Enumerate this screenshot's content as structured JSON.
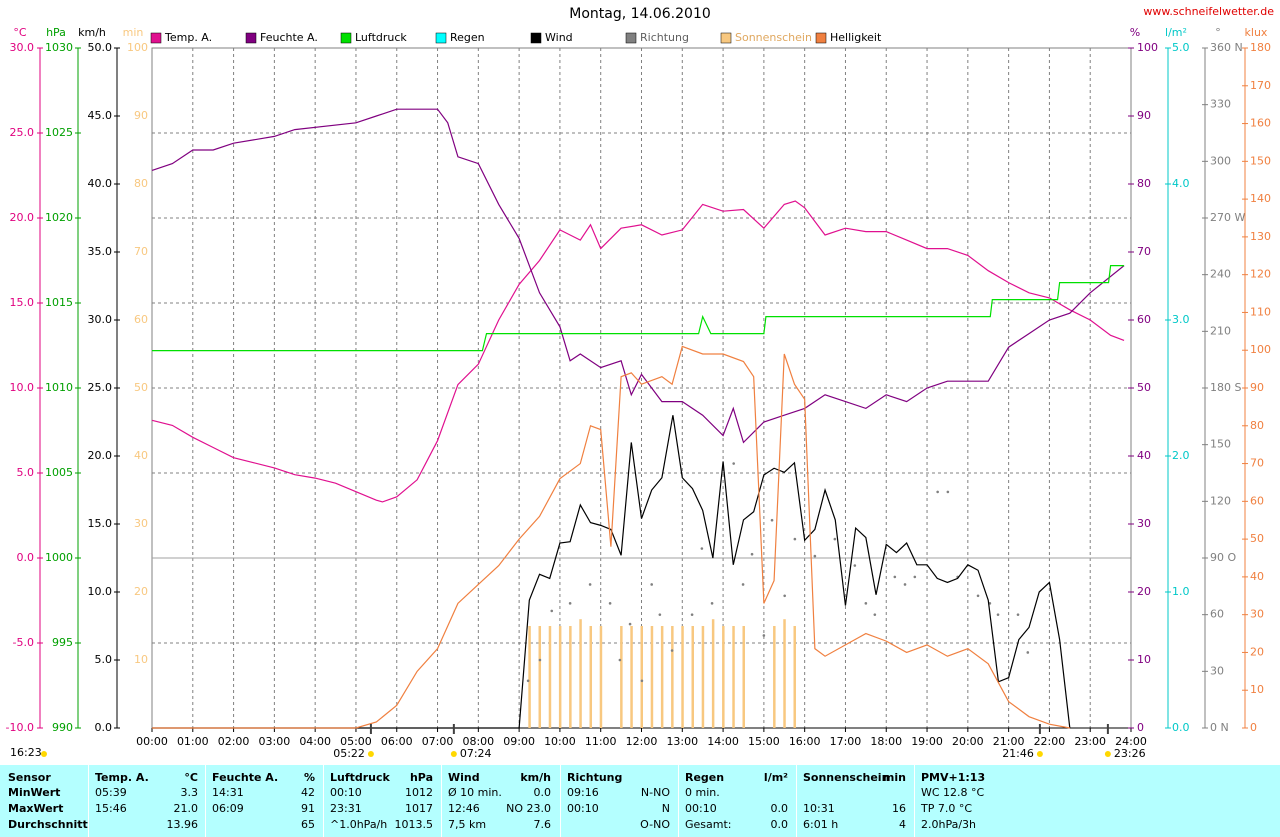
{
  "chart_data": {
    "type": "line",
    "title": "Montag, 14.06.2010",
    "source": "www.schneifelwetter.de",
    "grid": true,
    "xlim": [
      0,
      24
    ],
    "xticks": [
      {
        "value": 0,
        "label": "00:00"
      },
      {
        "value": 1,
        "label": "01:00"
      },
      {
        "value": 2,
        "label": "02:00"
      },
      {
        "value": 3,
        "label": "03:00"
      },
      {
        "value": 4,
        "label": "04:00"
      },
      {
        "value": 5,
        "label": "05:00"
      },
      {
        "value": 6,
        "label": "06:00"
      },
      {
        "value": 7,
        "label": "07:00"
      },
      {
        "value": 8,
        "label": "08:00"
      },
      {
        "value": 9,
        "label": "09:00"
      },
      {
        "value": 10,
        "label": "10:00"
      },
      {
        "value": 11,
        "label": "11:00"
      },
      {
        "value": 12,
        "label": "12:00"
      },
      {
        "value": 13,
        "label": "13:00"
      },
      {
        "value": 14,
        "label": "14:00"
      },
      {
        "value": 15,
        "label": "15:00"
      },
      {
        "value": 16,
        "label": "16:00"
      },
      {
        "value": 17,
        "label": "17:00"
      },
      {
        "value": 18,
        "label": "18:00"
      },
      {
        "value": 19,
        "label": "19:00"
      },
      {
        "value": 20,
        "label": "20:00"
      },
      {
        "value": 21,
        "label": "21:00"
      },
      {
        "value": 22,
        "label": "22:00"
      },
      {
        "value": 23,
        "label": "23:00"
      },
      {
        "value": 24,
        "label": "24:00"
      }
    ],
    "axes": [
      {
        "unit": "°C",
        "color": "#e0007f",
        "lim": [
          -10,
          30
        ],
        "ticks": [
          {
            "value": -10,
            "label": "-10.0"
          },
          {
            "value": -5,
            "label": "-5.0"
          },
          {
            "value": 0,
            "label": "0.0"
          },
          {
            "value": 5,
            "label": "5.0"
          },
          {
            "value": 10,
            "label": "10.0"
          },
          {
            "value": 15,
            "label": "15.0"
          },
          {
            "value": 20,
            "label": "20.0"
          },
          {
            "value": 25,
            "label": "25.0"
          },
          {
            "value": 30,
            "label": "30.0"
          }
        ]
      },
      {
        "unit": "hPa",
        "color": "#00a000",
        "lim": [
          990,
          1030
        ],
        "ticks": [
          990,
          995,
          1000,
          1005,
          1010,
          1015,
          1020,
          1025,
          1030
        ]
      },
      {
        "unit": "km/h",
        "color": "#000000",
        "lim": [
          0,
          50
        ],
        "ticks": [
          {
            "value": 0,
            "label": "0.0"
          },
          {
            "value": 5,
            "label": "5.0"
          },
          {
            "value": 10,
            "label": "10.0"
          },
          {
            "value": 15,
            "label": "15.0"
          },
          {
            "value": 20,
            "label": "20.0"
          },
          {
            "value": 25,
            "label": "25.0"
          },
          {
            "value": 30,
            "label": "30.0"
          },
          {
            "value": 35,
            "label": "35.0"
          },
          {
            "value": 40,
            "label": "40.0"
          },
          {
            "value": 45,
            "label": "45.0"
          },
          {
            "value": 50,
            "label": "50.0"
          }
        ]
      },
      {
        "unit": "min",
        "color": "#f8c880",
        "lim": [
          0,
          100
        ],
        "ticks": [
          10,
          20,
          30,
          40,
          50,
          60,
          70,
          80,
          90,
          100
        ]
      },
      {
        "unit": "%",
        "color": "#800080",
        "lim": [
          0,
          100
        ],
        "ticks": [
          0,
          10,
          20,
          30,
          40,
          50,
          60,
          70,
          80,
          90,
          100
        ]
      },
      {
        "unit": "l/m²",
        "color": "#00c8c8",
        "lim": [
          0,
          5
        ],
        "ticks": [
          {
            "value": 0,
            "label": "0.0"
          },
          {
            "value": 1,
            "label": "1.0"
          },
          {
            "value": 2,
            "label": "2.0"
          },
          {
            "value": 3,
            "label": "3.0"
          },
          {
            "value": 4,
            "label": "4.0"
          },
          {
            "value": 5,
            "label": "5.0"
          }
        ]
      },
      {
        "unit": "°",
        "color": "#808080",
        "lim": [
          0,
          360
        ],
        "ticks": [
          {
            "value": 0,
            "label": "0 N"
          },
          30,
          60,
          {
            "value": 90,
            "label": "90 O"
          },
          120,
          150,
          {
            "value": 180,
            "label": "180 S"
          },
          210,
          240,
          {
            "value": 270,
            "label": "270 W"
          },
          300,
          330,
          {
            "value": 360,
            "label": "360 N"
          }
        ]
      },
      {
        "unit": "klux",
        "color": "#f08040",
        "lim": [
          0,
          180
        ],
        "ticks": [
          0,
          10,
          20,
          30,
          40,
          50,
          60,
          70,
          80,
          90,
          100,
          110,
          120,
          130,
          140,
          150,
          160,
          170,
          180
        ]
      }
    ],
    "series": [
      {
        "name": "Temp. A.",
        "color": "#e0108f",
        "type": "line",
        "axis": 0,
        "x": [
          0,
          0.5,
          1,
          1.5,
          2,
          2.5,
          3,
          3.5,
          4,
          4.5,
          5,
          5.5,
          5.65,
          6,
          6.5,
          7,
          7.5,
          8,
          8.5,
          9,
          9.5,
          10,
          10.5,
          10.75,
          11,
          11.5,
          12,
          12.5,
          13,
          13.5,
          14,
          14.5,
          15,
          15.5,
          15.77,
          16,
          16.5,
          17,
          17.5,
          18,
          18.5,
          19,
          19.5,
          20,
          20.5,
          21,
          21.5,
          22,
          22.5,
          23,
          23.5,
          23.83
        ],
        "values": [
          8.1,
          7.8,
          7.1,
          6.5,
          5.9,
          5.6,
          5.3,
          4.9,
          4.7,
          4.4,
          3.9,
          3.4,
          3.3,
          3.6,
          4.6,
          6.9,
          10.2,
          11.4,
          14.0,
          16.1,
          17.5,
          19.3,
          18.7,
          19.6,
          18.2,
          19.4,
          19.6,
          19.0,
          19.3,
          20.8,
          20.4,
          20.5,
          19.4,
          20.8,
          21.0,
          20.6,
          19.0,
          19.4,
          19.2,
          19.2,
          18.7,
          18.2,
          18.2,
          17.8,
          16.9,
          16.2,
          15.6,
          15.3,
          14.6,
          14.0,
          13.1,
          12.8
        ]
      },
      {
        "name": "Feuchte A.",
        "color": "#800080",
        "type": "line",
        "axis": 4,
        "x": [
          0,
          0.5,
          1,
          1.5,
          2,
          3,
          3.5,
          5,
          5.5,
          6,
          7,
          7.25,
          7.5,
          8,
          8.5,
          9,
          9.5,
          10,
          10.25,
          10.5,
          11,
          11.5,
          11.75,
          12,
          12.5,
          13,
          13.5,
          14,
          14.25,
          14.5,
          15,
          15.5,
          16,
          16.5,
          17,
          17.5,
          18,
          18.5,
          19,
          19.5,
          20,
          20.5,
          21,
          21.5,
          22,
          22.5,
          23,
          23.83
        ],
        "values": [
          82,
          83,
          85,
          85,
          86,
          87,
          88,
          89,
          90,
          91,
          91,
          89,
          84,
          83,
          77,
          72,
          64,
          59,
          54,
          55,
          53,
          54,
          49,
          52,
          48,
          48,
          46,
          43,
          47,
          42,
          45,
          46,
          47,
          49,
          48,
          47,
          49,
          48,
          50,
          51,
          51,
          51,
          56,
          58,
          60,
          61,
          64,
          68
        ]
      },
      {
        "name": "Luftdruck",
        "color": "#00e000",
        "type": "line",
        "axis": 1,
        "x": [
          0,
          8.1,
          8.2,
          13.4,
          13.5,
          13.7,
          15.0,
          15.05,
          20.55,
          20.6,
          22.2,
          22.25,
          23.45,
          23.5,
          23.83
        ],
        "values": [
          1012.2,
          1012.2,
          1013.2,
          1013.2,
          1014.2,
          1013.2,
          1013.2,
          1014.2,
          1014.2,
          1015.2,
          1015.2,
          1016.2,
          1016.2,
          1017.2,
          1017.2
        ]
      },
      {
        "name": "Regen",
        "color": "#00ffff",
        "type": "line",
        "axis": 5,
        "x": [],
        "values": []
      },
      {
        "name": "Wind",
        "color": "#000000",
        "type": "line",
        "axis": 2,
        "x": [
          0,
          9,
          9.25,
          9.5,
          9.75,
          10,
          10.25,
          10.5,
          10.75,
          11,
          11.25,
          11.5,
          11.75,
          12,
          12.25,
          12.5,
          12.77,
          13,
          13.25,
          13.5,
          13.75,
          14,
          14.25,
          14.5,
          14.75,
          15,
          15.25,
          15.5,
          15.75,
          16,
          16.25,
          16.5,
          16.75,
          17,
          17.25,
          17.5,
          17.75,
          18,
          18.25,
          18.5,
          18.75,
          19,
          19.25,
          19.5,
          19.75,
          20,
          20.25,
          20.5,
          20.75,
          21,
          21.25,
          21.5,
          21.75,
          22,
          22.25,
          22.5
        ],
        "values": [
          0,
          0,
          9.4,
          11.3,
          11.0,
          13.6,
          13.7,
          16.4,
          15.1,
          14.9,
          14.6,
          12.7,
          21.0,
          15.4,
          17.5,
          18.4,
          23.0,
          18.4,
          17.6,
          16.0,
          12.5,
          19.6,
          12.0,
          15.3,
          15.9,
          18.6,
          19.1,
          18.8,
          19.5,
          13.8,
          14.6,
          17.5,
          15.3,
          9.0,
          14.7,
          14.0,
          9.8,
          13.5,
          12.9,
          13.6,
          12.0,
          12.0,
          11.0,
          10.7,
          11.0,
          12.0,
          11.6,
          9.4,
          3.4,
          3.7,
          6.5,
          7.4,
          10.0,
          10.7,
          6.5,
          0
        ]
      },
      {
        "name": "Richtung",
        "color": "#808080",
        "type": "dots",
        "axis": 6,
        "x": [
          9.22,
          9.51,
          9.8,
          10.25,
          10.74,
          11.23,
          11.47,
          11.72,
          12.01,
          12.25,
          12.45,
          12.75,
          13.24,
          13.48,
          13.73,
          14.26,
          14.49,
          14.71,
          15.0,
          15.2,
          15.51,
          15.76,
          16.25,
          16.74,
          17.23,
          17.5,
          17.72,
          18.21,
          18.46,
          18.7,
          19.26,
          19.51,
          19.75,
          20.25,
          20.54,
          20.74,
          21.23,
          21.47
        ],
        "values": [
          25,
          36,
          62,
          66,
          76,
          66,
          36,
          55,
          25,
          76,
          60,
          41,
          60,
          95,
          66,
          140,
          76,
          92,
          49,
          110,
          70,
          100,
          91,
          100,
          86,
          66,
          60,
          80,
          76,
          80,
          125,
          125,
          80,
          70,
          66,
          60,
          60,
          40
        ]
      },
      {
        "name": "Sonnenschein",
        "color": "#f8c880",
        "type": "bars",
        "axis": 3,
        "x": [
          9.25,
          9.5,
          9.75,
          10,
          10.25,
          10.5,
          10.75,
          11,
          11.5,
          11.75,
          12,
          12.25,
          12.5,
          12.75,
          13,
          13.25,
          13.5,
          13.75,
          14,
          14.25,
          14.5,
          15.25,
          15.5,
          15.75
        ],
        "values": [
          15,
          15,
          15,
          15,
          15,
          16,
          15,
          15,
          15,
          15,
          15,
          15,
          15,
          15,
          15,
          15,
          15,
          16,
          15,
          15,
          15,
          15,
          16,
          15
        ]
      },
      {
        "name": "Helligkeit",
        "color": "#f08040",
        "type": "line",
        "axis": 7,
        "x": [
          0,
          5,
          5.5,
          6,
          6.5,
          7,
          7.5,
          8,
          8.5,
          9,
          9.5,
          10,
          10.5,
          10.75,
          11,
          11.25,
          11.5,
          11.75,
          12,
          12.25,
          12.5,
          12.75,
          13,
          13.5,
          14,
          14.5,
          14.75,
          15,
          15.25,
          15.5,
          15.75,
          16,
          16.25,
          16.5,
          17,
          17.5,
          18,
          18.5,
          19,
          19.5,
          20,
          20.5,
          21,
          21.5,
          22,
          22.5
        ],
        "values": [
          0,
          0,
          1.6,
          6,
          15,
          21,
          33,
          38,
          43,
          50,
          56,
          66,
          70,
          80,
          79,
          48,
          93,
          94,
          91,
          92,
          93,
          91,
          101,
          99,
          99,
          97,
          93,
          33,
          39,
          99,
          91,
          87,
          21,
          19,
          22,
          25,
          23,
          20,
          22,
          19,
          21,
          17,
          7,
          3,
          1,
          0
        ]
      }
    ],
    "annotations": [
      "05:22",
      "07:24",
      "21:46",
      "23:26"
    ],
    "left_note": "16:23"
  },
  "table": {
    "corner": "Sensor",
    "row_labels": [
      "MinWert",
      "MaxWert",
      "Durchschnitt"
    ],
    "columns": [
      {
        "name": "Temp. A.",
        "unit": "°C",
        "cells": [
          [
            "05:39",
            "3.3"
          ],
          [
            "15:46",
            "21.0"
          ],
          [
            null,
            "13.96"
          ]
        ]
      },
      {
        "name": "Feuchte A.",
        "unit": "%",
        "cells": [
          [
            "14:31",
            "42"
          ],
          [
            "06:09",
            "91"
          ],
          [
            null,
            "65"
          ]
        ]
      },
      {
        "name": "Luftdruck",
        "unit": "hPa",
        "cells": [
          [
            "00:10",
            "1012"
          ],
          [
            "23:31",
            "1017"
          ],
          [
            "^1.0hPa/h",
            "1013.5"
          ]
        ]
      },
      {
        "name": "Wind",
        "unit": "km/h",
        "cells": [
          [
            "Ø 10 min.",
            "0.0"
          ],
          [
            "12:46",
            "NO 23.0"
          ],
          [
            "7,5 km",
            "7.6"
          ]
        ]
      },
      {
        "name": "Richtung",
        "cells": [
          [
            "09:16",
            "N-NO"
          ],
          [
            "00:10",
            "N"
          ],
          [
            null,
            "O-NO"
          ]
        ]
      },
      {
        "name": "Regen",
        "unit": "l/m²",
        "cells": [
          [
            "0 min.",
            null
          ],
          [
            "00:10",
            "0.0"
          ],
          [
            "Gesamt:",
            "0.0"
          ]
        ]
      },
      {
        "name": "Sonnenschein",
        "unit": "min",
        "cells": [
          null,
          [
            "10:31",
            "16"
          ],
          [
            "6:01 h",
            "4"
          ]
        ]
      },
      {
        "name": "PMV+1:13",
        "cells": [
          [
            "WC 12.8 °C"
          ],
          [
            "TP 7.0 °C"
          ],
          [
            "2.0hPa/3h"
          ]
        ]
      }
    ]
  }
}
